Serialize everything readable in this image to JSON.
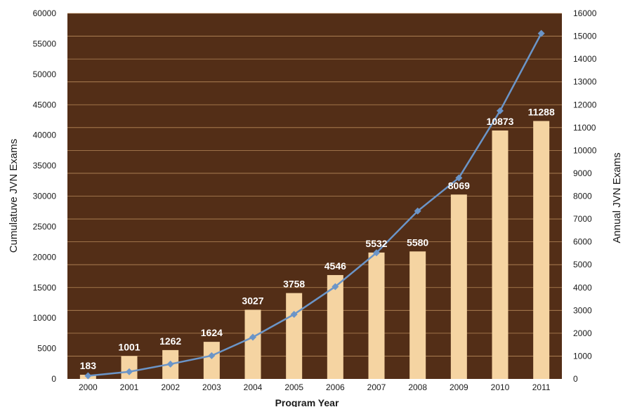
{
  "chart_data": {
    "type": "bar",
    "categories": [
      "2000",
      "2001",
      "2002",
      "2003",
      "2004",
      "2005",
      "2006",
      "2007",
      "2008",
      "2009",
      "2010",
      "2011"
    ],
    "series": [
      {
        "type": "bar",
        "axis": "right",
        "values": [
          183,
          1001,
          1262,
          1624,
          3027,
          3758,
          4546,
          5532,
          5580,
          8069,
          10873,
          11288
        ],
        "data_labels": [
          "183",
          "1001",
          "1262",
          "1624",
          "3027",
          "3758",
          "4546",
          "5532",
          "5580",
          "8069",
          "10873",
          "11288"
        ]
      },
      {
        "type": "line",
        "axis": "left",
        "values": [
          520,
          1180,
          2440,
          3820,
          6850,
          10600,
          15150,
          20700,
          27550,
          33000,
          44000,
          56700
        ]
      }
    ],
    "xlabel": "Program Year",
    "ylabel_left": "Cumulatuve JVN Exams",
    "ylabel_right": "Annual JVN Exams",
    "ylim_left": [
      0,
      60000
    ],
    "ylim_right": [
      0,
      16000
    ],
    "yticks_left": [
      "0",
      "5000",
      "10000",
      "15000",
      "20000",
      "25000",
      "30000",
      "35000",
      "40000",
      "45000",
      "50000",
      "55000",
      "60000"
    ],
    "yticks_right": [
      "0",
      "1000",
      "2000",
      "3000",
      "4000",
      "5000",
      "6000",
      "7000",
      "8000",
      "9000",
      "10000",
      "11000",
      "12000",
      "13000",
      "14000",
      "15000",
      "16000"
    ],
    "grid": true,
    "colors": {
      "plot_background": "#532e17",
      "gridline": "#c99a66",
      "bar": "#f5d4a2",
      "line": "#6b95c8"
    }
  }
}
